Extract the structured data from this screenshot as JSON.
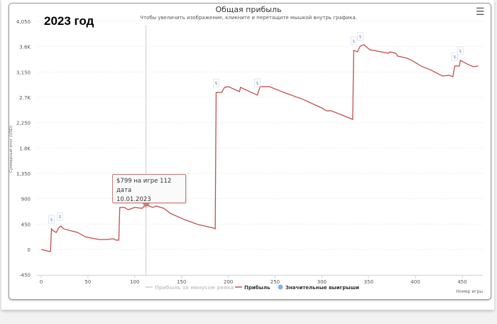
{
  "overlay_label": "2023 год",
  "menu_icon": "hamburger-icon",
  "chart_data": {
    "type": "line",
    "title": "Общая прибыль",
    "subtitle": "Чтобы увеличить изображение, кликните и перетащите мышкой внутрь графика.",
    "xlabel": "Номер игры",
    "ylabel": "Суммарный итог (USD)",
    "xlim": [
      0,
      470
    ],
    "ylim": [
      -450,
      4050
    ],
    "x_ticks": [
      "0",
      "50",
      "100",
      "150",
      "200",
      "250",
      "300",
      "350",
      "400",
      "450"
    ],
    "y_ticks": [
      "4,050",
      "3.6K",
      "3,150",
      "2.7K",
      "2,250",
      "1.8K",
      "1,350",
      "900",
      "450",
      "0",
      "-450"
    ],
    "y_tick_values": [
      4050,
      3600,
      3150,
      2700,
      2250,
      1800,
      1350,
      900,
      450,
      0,
      -450
    ],
    "grid": "horizontal dotted",
    "legend_placement": "bottom",
    "legend": [
      {
        "name": "Прибыль за минусом рейка",
        "color": "#cccccc",
        "hidden": true
      },
      {
        "name": "Прибыль",
        "color": "#c0504d"
      },
      {
        "name": "Значительные выигрыши",
        "color": "#7cb5ec"
      }
    ],
    "series": [
      {
        "name": "Прибыль",
        "color": "#c0504d",
        "points": [
          [
            0,
            0
          ],
          [
            6,
            -25
          ],
          [
            9,
            -40
          ],
          [
            10,
            -30
          ],
          [
            11,
            365
          ],
          [
            13,
            330
          ],
          [
            16,
            300
          ],
          [
            19,
            390
          ],
          [
            21,
            415
          ],
          [
            24,
            365
          ],
          [
            32,
            330
          ],
          [
            39,
            300
          ],
          [
            47,
            225
          ],
          [
            54,
            200
          ],
          [
            62,
            175
          ],
          [
            70,
            175
          ],
          [
            77,
            190
          ],
          [
            80,
            165
          ],
          [
            83,
            165
          ],
          [
            84,
            745
          ],
          [
            89,
            745
          ],
          [
            93,
            705
          ],
          [
            100,
            745
          ],
          [
            108,
            730
          ],
          [
            111,
            780
          ],
          [
            112,
            799
          ],
          [
            119,
            745
          ],
          [
            123,
            770
          ],
          [
            131,
            730
          ],
          [
            138,
            640
          ],
          [
            153,
            530
          ],
          [
            168,
            440
          ],
          [
            184,
            380
          ],
          [
            186,
            365
          ],
          [
            187,
            2785
          ],
          [
            193,
            2789
          ],
          [
            196,
            2877
          ],
          [
            200,
            2890
          ],
          [
            212,
            2802
          ],
          [
            213,
            2877
          ],
          [
            231,
            2739
          ],
          [
            234,
            2890
          ],
          [
            244,
            2890
          ],
          [
            257,
            2802
          ],
          [
            280,
            2663
          ],
          [
            300,
            2511
          ],
          [
            305,
            2461
          ],
          [
            310,
            2461
          ],
          [
            333,
            2309
          ],
          [
            334,
            3534
          ],
          [
            338,
            3508
          ],
          [
            341,
            3609
          ],
          [
            345,
            3635
          ],
          [
            351,
            3546
          ],
          [
            371,
            3483
          ],
          [
            373,
            3508
          ],
          [
            379,
            3483
          ],
          [
            381,
            3433
          ],
          [
            391,
            3395
          ],
          [
            396,
            3357
          ],
          [
            406,
            3256
          ],
          [
            417,
            3180
          ],
          [
            429,
            3079
          ],
          [
            436,
            3092
          ],
          [
            440,
            3067
          ],
          [
            442,
            3256
          ],
          [
            447,
            3256
          ],
          [
            448,
            3357
          ],
          [
            455,
            3294
          ],
          [
            462,
            3243
          ],
          [
            467,
            3256
          ]
        ]
      }
    ],
    "big_wins": [
      11,
      20,
      187,
      231,
      334,
      341,
      442,
      448
    ],
    "flag_label": "$",
    "tooltip": {
      "game": 112,
      "value": 799,
      "line1": "$799 на игре 112 дата",
      "line2": "10.01.2023"
    }
  }
}
